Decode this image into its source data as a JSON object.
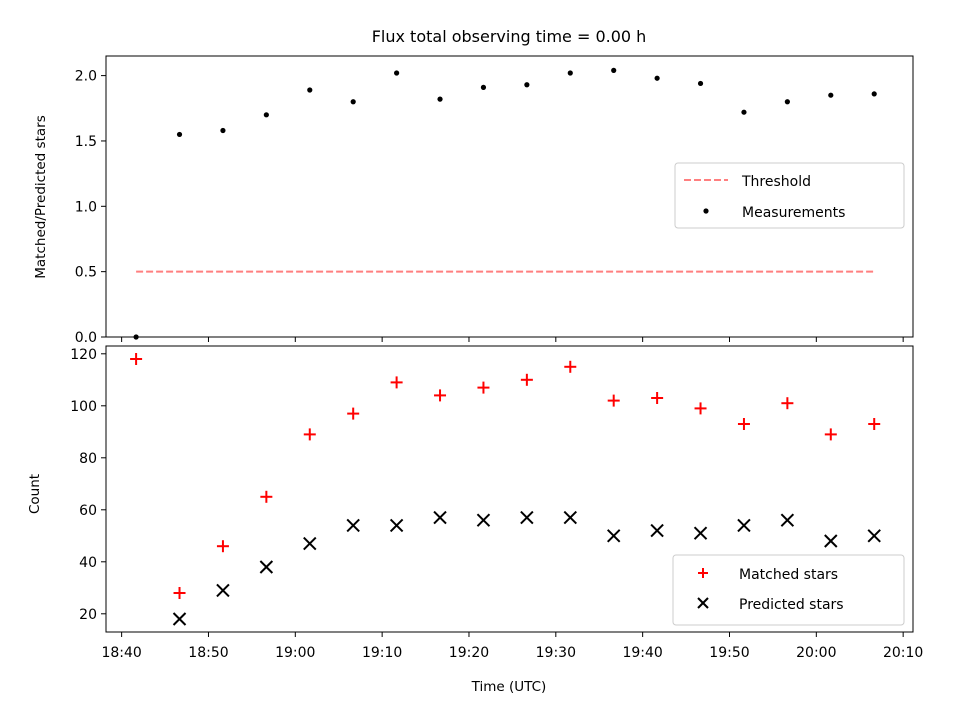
{
  "chart_data": [
    {
      "type": "scatter",
      "title": "Flux total observing time = 0.00 h",
      "xlabel": "",
      "ylabel": "Matched/Predicted stars",
      "ylim": [
        0,
        2.15
      ],
      "yticks": [
        0.0,
        0.5,
        1.0,
        1.5,
        2.0
      ],
      "ytick_labels": [
        "0.0",
        "0.5",
        "1.0",
        "1.5",
        "2.0"
      ],
      "x_ticks_shown_labels": false,
      "legend_position": "center-right",
      "threshold": {
        "name": "Threshold",
        "value": 0.5,
        "color": "#ff7f7f",
        "style": "dashed",
        "x_range": [
          "18:41:40",
          "20:06:40"
        ]
      },
      "series": [
        {
          "name": "Measurements",
          "marker": "dot",
          "color": "#000000",
          "x": [
            "18:41:40",
            "18:46:40",
            "18:51:40",
            "18:56:40",
            "19:01:40",
            "19:06:40",
            "19:11:40",
            "19:16:40",
            "19:21:40",
            "19:26:40",
            "19:31:40",
            "19:36:40",
            "19:41:40",
            "19:46:40",
            "19:51:40",
            "19:56:40",
            "20:01:40",
            "20:06:40"
          ],
          "y": [
            0.0,
            1.55,
            1.58,
            1.7,
            1.89,
            1.8,
            2.02,
            1.82,
            1.91,
            1.93,
            2.02,
            2.04,
            1.98,
            1.94,
            1.72,
            1.8,
            1.85,
            1.86
          ]
        }
      ]
    },
    {
      "type": "scatter",
      "title": "",
      "xlabel": "Time (UTC)",
      "ylabel": "Count",
      "ylim": [
        13,
        123
      ],
      "yticks": [
        20,
        40,
        60,
        80,
        100,
        120
      ],
      "ytick_labels": [
        "20",
        "40",
        "60",
        "80",
        "100",
        "120"
      ],
      "legend_position": "lower-right",
      "series": [
        {
          "name": "Matched stars",
          "marker": "plus",
          "color": "#ff0000",
          "x": [
            "18:41:40",
            "18:46:40",
            "18:51:40",
            "18:56:40",
            "19:01:40",
            "19:06:40",
            "19:11:40",
            "19:16:40",
            "19:21:40",
            "19:26:40",
            "19:31:40",
            "19:36:40",
            "19:41:40",
            "19:46:40",
            "19:51:40",
            "19:56:40",
            "20:01:40",
            "20:06:40"
          ],
          "y": [
            118,
            28,
            46,
            65,
            89,
            97,
            109,
            104,
            107,
            110,
            115,
            102,
            103,
            99,
            93,
            101,
            89,
            93
          ]
        },
        {
          "name": "Predicted stars",
          "marker": "x",
          "color": "#000000",
          "x": [
            "18:41:40",
            "18:46:40",
            "18:51:40",
            "18:56:40",
            "19:01:40",
            "19:06:40",
            "19:11:40",
            "19:16:40",
            "19:21:40",
            "19:26:40",
            "19:31:40",
            "19:36:40",
            "19:41:40",
            "19:46:40",
            "19:51:40",
            "19:56:40",
            "20:01:40",
            "20:06:40"
          ],
          "y": [
            null,
            18,
            29,
            38,
            47,
            54,
            54,
            57,
            56,
            57,
            57,
            50,
            52,
            51,
            54,
            56,
            48,
            50
          ]
        }
      ]
    }
  ],
  "x_axis": {
    "range": [
      "18:38:12",
      "20:11:08"
    ],
    "ticks": [
      "18:40",
      "18:50",
      "19:00",
      "19:10",
      "19:20",
      "19:30",
      "19:40",
      "19:50",
      "20:00",
      "20:10"
    ],
    "tick_labels": [
      "18:40",
      "18:50",
      "19:00",
      "19:10",
      "19:20",
      "19:30",
      "19:40",
      "19:50",
      "20:00",
      "20:10"
    ]
  }
}
